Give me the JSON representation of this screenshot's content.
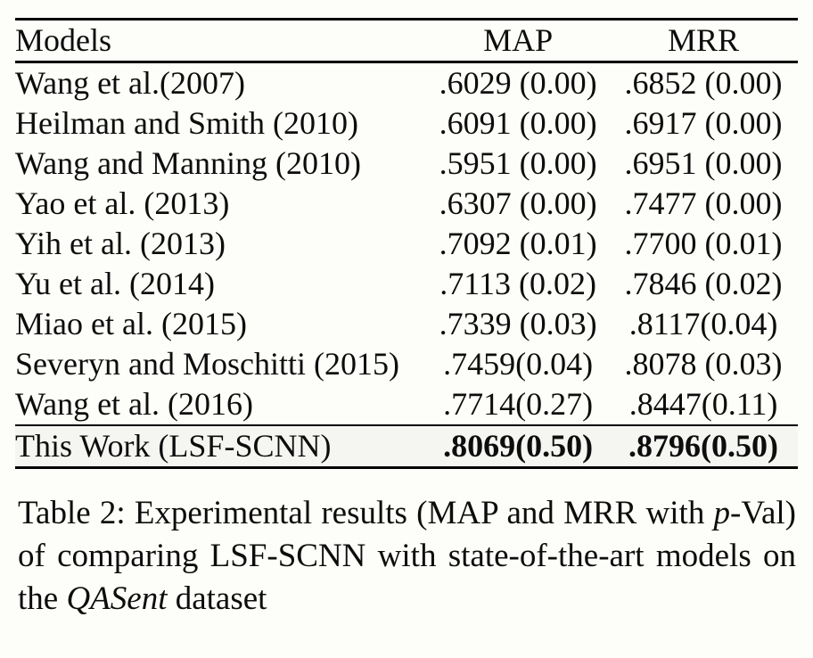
{
  "colors": {
    "background": "#fdfdf9",
    "text": "#0d0d0d",
    "rule": "#000000",
    "highlight_row_background": "#f5f5f2"
  },
  "table": {
    "columns": [
      "Models",
      "MAP",
      "MRR"
    ],
    "rows": [
      {
        "model": "Wang et al.(2007)",
        "map": ".6029 (0.00)",
        "mrr": ".6852 (0.00)"
      },
      {
        "model": "Heilman and Smith (2010)",
        "map": ".6091 (0.00)",
        "mrr": ".6917 (0.00)"
      },
      {
        "model": "Wang and Manning (2010)",
        "map": ".5951 (0.00)",
        "mrr": ".6951 (0.00)"
      },
      {
        "model": "Yao et al. (2013)",
        "map": ".6307 (0.00)",
        "mrr": ".7477 (0.00)"
      },
      {
        "model": "Yih et al. (2013)",
        "map": ".7092 (0.01)",
        "mrr": ".7700 (0.01)"
      },
      {
        "model": "Yu et al. (2014)",
        "map": ".7113 (0.02)",
        "mrr": ".7846 (0.02)"
      },
      {
        "model": "Miao et al. (2015)",
        "map": ".7339 (0.03)",
        "mrr": ".8117(0.04)"
      },
      {
        "model": "Severyn and Moschitti (2015)",
        "map": ".7459(0.04)",
        "mrr": ".8078 (0.03)"
      },
      {
        "model": "Wang et al. (2016)",
        "map": ".7714(0.27)",
        "mrr": ".8447(0.11)"
      }
    ],
    "highlight_row": {
      "model": "This Work (LSF-SCNN)",
      "map": ".8069(0.50)",
      "mrr": ".8796(0.50)"
    }
  },
  "caption": {
    "part1": "Table 2: Experimental results (MAP and MRR with ",
    "italic_p": "p",
    "part2": "-Val) of comparing LSF-SCNN with state-of-the-art models on the ",
    "italic_dataset": "QASent",
    "part3": " dataset"
  }
}
